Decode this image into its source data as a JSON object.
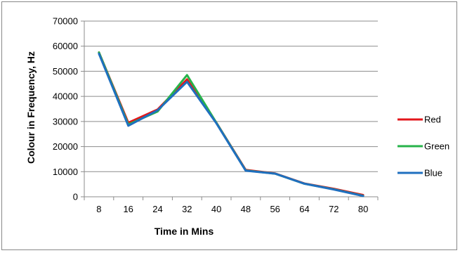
{
  "chart_data": {
    "type": "line",
    "categories": [
      "8",
      "16",
      "24",
      "32",
      "40",
      "48",
      "56",
      "64",
      "72",
      "80"
    ],
    "series": [
      {
        "name": "Red",
        "color": "#e3161b",
        "values": [
          57500,
          29500,
          34800,
          46800,
          29500,
          10700,
          9300,
          5300,
          3200,
          700
        ]
      },
      {
        "name": "Green",
        "color": "#27b34a",
        "values": [
          57500,
          28800,
          34000,
          48500,
          29500,
          10500,
          9200,
          5200,
          3000,
          400
        ]
      },
      {
        "name": "Blue",
        "color": "#1f6fbf",
        "values": [
          57000,
          28300,
          34500,
          45800,
          29300,
          10400,
          9200,
          5200,
          2900,
          300
        ]
      }
    ],
    "y_ticks": [
      "0",
      "10000",
      "20000",
      "30000",
      "40000",
      "50000",
      "60000",
      "70000"
    ],
    "ylim": [
      0,
      70000
    ],
    "xlabel": "Time in Mins",
    "ylabel": "Colour in Frequency, Hz",
    "grid": "horizontal",
    "legend_position": "right"
  }
}
